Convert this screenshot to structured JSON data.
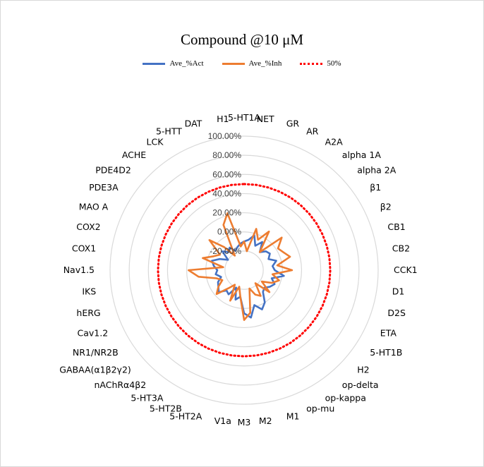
{
  "chart_data": {
    "type": "radar",
    "title": "Compound @10 μM",
    "categories": [
      "5-HT1A",
      "NET",
      "GR",
      "AR",
      "A2A",
      "alpha 1A",
      "alpha 2A",
      "β1",
      "β2",
      "CB1",
      "CB2",
      "CCK1",
      "D1",
      "D2S",
      "ETA",
      "5-HT1B",
      "H2",
      "op-delta",
      "op-kappa",
      "op-mu",
      "M1",
      "M2",
      "M3",
      "V1a",
      "5-HT2A",
      "5-HT2B",
      "5-HT3A",
      "nAChRα4β2",
      "GABAA(α1β2γ2)",
      "NR1/NR2B",
      "Cav1.2",
      "hERG",
      "IKS",
      "Nav1.5",
      "COX1",
      "COX2",
      "MAO A",
      "PDE3A",
      "PDE4D2",
      "ACHE",
      "LCK",
      "5-HTT",
      "DAT",
      "H1"
    ],
    "rlim": [
      -40,
      100
    ],
    "ticks": [
      "-20.00%",
      "0.00%",
      "20.00%",
      "40.00%",
      "60.00%",
      "80.00%",
      "100.00%"
    ],
    "tick_values": [
      -20,
      0,
      20,
      40,
      60,
      80,
      100
    ],
    "series": [
      {
        "name": "Ave_%Act",
        "color": "#4472c4",
        "style": "solid",
        "values": [
          -10,
          -8,
          -2,
          -12,
          -5,
          -15,
          -10,
          -8,
          -12,
          -5,
          -10,
          -8,
          2,
          -10,
          -5,
          -8,
          -12,
          -10,
          0,
          5,
          -2,
          10,
          5,
          -12,
          -8,
          -20,
          -10,
          -12,
          -5,
          -8,
          -10,
          -15,
          -10,
          -12,
          -8,
          -5,
          -12,
          -20,
          -10,
          -15,
          -12,
          -18,
          -15,
          -12
        ]
      },
      {
        "name": "Ave_%Inh",
        "color": "#ed7d31",
        "style": "solid",
        "values": [
          -10,
          -20,
          5,
          -5,
          8,
          -15,
          12,
          2,
          5,
          10,
          -5,
          10,
          -10,
          -2,
          -8,
          -18,
          -5,
          -22,
          -8,
          -12,
          -20,
          5,
          12,
          -12,
          -22,
          -5,
          -22,
          -15,
          -2,
          -8,
          -15,
          -10,
          8,
          18,
          -18,
          5,
          -5,
          -10,
          8,
          -8,
          -22,
          12,
          22,
          -15
        ]
      },
      {
        "name": "50%",
        "color": "#ff0000",
        "style": "dotted",
        "values": [
          50,
          50,
          50,
          50,
          50,
          50,
          50,
          50,
          50,
          50,
          50,
          50,
          50,
          50,
          50,
          50,
          50,
          50,
          50,
          50,
          50,
          50,
          50,
          50,
          50,
          50,
          50,
          50,
          50,
          50,
          50,
          50,
          50,
          50,
          50,
          50,
          50,
          50,
          50,
          50,
          50,
          50,
          50,
          50
        ]
      }
    ],
    "grid": true,
    "legend_position": "top"
  }
}
